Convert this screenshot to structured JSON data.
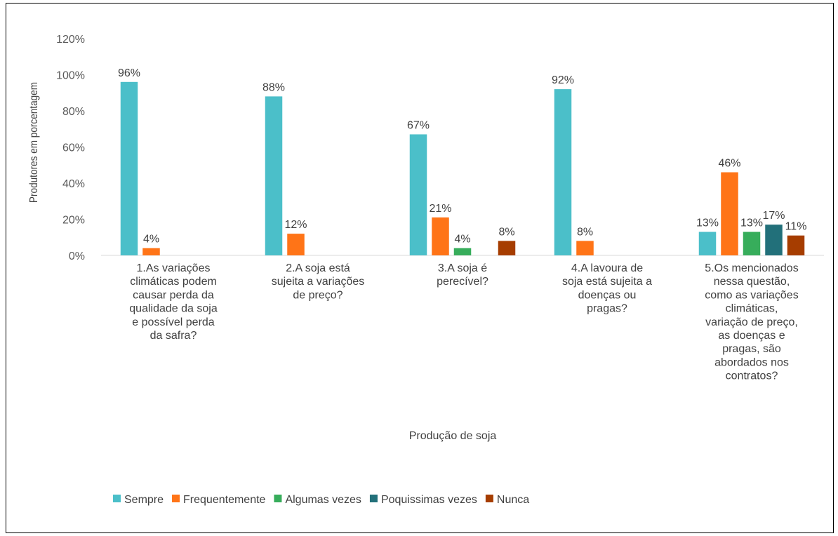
{
  "chart_data": {
    "type": "bar",
    "ylabel": "Produtores  em porcentagem",
    "xlabel": "Produção  de soja",
    "ylim": [
      0,
      120
    ],
    "y_ticks": [
      "0%",
      "20%",
      "40%",
      "60%",
      "80%",
      "100%",
      "120%"
    ],
    "grid": false,
    "legend_position": "bottom",
    "categories": [
      [
        "1.As variações",
        "climáticas podem",
        "causar perda da",
        "qualidade da soja",
        "e possível perda",
        "da safra?"
      ],
      [
        "2.A soja está",
        "sujeita a variações",
        "de preço?"
      ],
      [
        "3.A soja é",
        "perecível?"
      ],
      [
        "4.A lavoura de",
        "soja está sujeita a",
        "doenças ou",
        "pragas?"
      ],
      [
        "5.Os mencionados",
        "nessa questão,",
        "como as variações",
        "climáticas,",
        "variação de preço,",
        "as doenças e",
        "pragas, são",
        "abordados nos",
        "contratos?"
      ]
    ],
    "series": [
      {
        "name": "Sempre",
        "color": "#4BBFC9",
        "values": [
          96,
          88,
          67,
          92,
          13
        ],
        "labels": [
          "96%",
          "88%",
          "67%",
          "92%",
          "13%"
        ]
      },
      {
        "name": "Frequentemente",
        "color": "#FF7417",
        "values": [
          4,
          12,
          21,
          8,
          46
        ],
        "labels": [
          "4%",
          "12%",
          "21%",
          "8%",
          "46%"
        ]
      },
      {
        "name": "Algumas vezes",
        "color": "#37AD5B",
        "values": [
          0,
          0,
          4,
          0,
          13
        ],
        "labels": [
          "",
          "",
          "4%",
          "",
          "13%"
        ]
      },
      {
        "name": "Poquissimas vezes",
        "color": "#22707A",
        "values": [
          0,
          0,
          0,
          0,
          17
        ],
        "labels": [
          "",
          "",
          "",
          "",
          "17%"
        ]
      },
      {
        "name": "Nunca",
        "color": "#A63D00",
        "values": [
          0,
          0,
          8,
          0,
          11
        ],
        "labels": [
          "",
          "",
          "8%",
          "",
          "11%"
        ]
      }
    ]
  }
}
